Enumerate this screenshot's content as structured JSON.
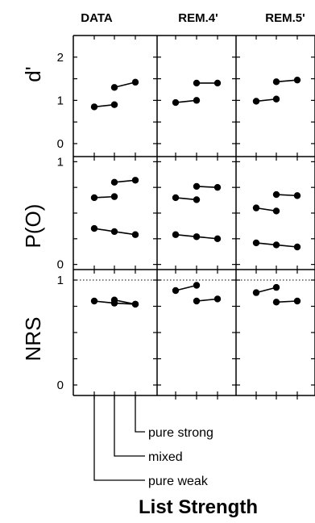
{
  "chart_data": {
    "type": "line",
    "xlabel": "List Strength",
    "columns": [
      "DATA",
      "REM.4'",
      "REM.5'"
    ],
    "conditions": [
      "pure weak",
      "mixed",
      "pure strong"
    ],
    "panels": [
      {
        "row_label": "d'",
        "ylim": [
          -0.3,
          2.5
        ],
        "yticks": [
          "0",
          "1",
          "2"
        ],
        "columns": [
          {
            "segments": [
              [
                [
                  0,
                  0.85
                ],
                [
                  1,
                  0.9
                ]
              ],
              [
                [
                  1,
                  1.3
                ],
                [
                  2,
                  1.42
                ]
              ]
            ]
          },
          {
            "segments": [
              [
                [
                  0,
                  0.95
                ],
                [
                  1,
                  1.0
                ]
              ],
              [
                [
                  1,
                  1.4
                ],
                [
                  2,
                  1.4
                ]
              ]
            ]
          },
          {
            "segments": [
              [
                [
                  0,
                  0.98
                ],
                [
                  1,
                  1.03
                ]
              ],
              [
                [
                  1,
                  1.43
                ],
                [
                  2,
                  1.47
                ]
              ]
            ]
          }
        ]
      },
      {
        "row_label": "P(O)",
        "ylim": [
          -0.05,
          1.05
        ],
        "yticks": [
          "0",
          "1"
        ],
        "columns": [
          {
            "segments": [
              [
                [
                  0,
                  0.65
                ],
                [
                  1,
                  0.66
                ]
              ],
              [
                [
                  1,
                  0.8
                ],
                [
                  2,
                  0.82
                ]
              ],
              [
                [
                  0,
                  0.35
                ],
                [
                  1,
                  0.32
                ],
                [
                  2,
                  0.29
                ]
              ]
            ]
          },
          {
            "segments": [
              [
                [
                  0,
                  0.65
                ],
                [
                  1,
                  0.63
                ]
              ],
              [
                [
                  1,
                  0.76
                ],
                [
                  2,
                  0.75
                ]
              ],
              [
                [
                  0,
                  0.29
                ],
                [
                  1,
                  0.27
                ],
                [
                  2,
                  0.25
                ]
              ]
            ]
          },
          {
            "segments": [
              [
                [
                  0,
                  0.55
                ],
                [
                  1,
                  0.52
                ]
              ],
              [
                [
                  1,
                  0.68
                ],
                [
                  2,
                  0.67
                ]
              ],
              [
                [
                  0,
                  0.21
                ],
                [
                  1,
                  0.19
                ],
                [
                  2,
                  0.17
                ]
              ]
            ]
          }
        ]
      },
      {
        "row_label": "NRS",
        "ylim": [
          -0.1,
          1.1
        ],
        "yticks": [
          "0",
          "1"
        ],
        "reference_line": 1,
        "columns": [
          {
            "segments": [
              [
                [
                  0,
                  0.8
                ],
                [
                  1,
                  0.78
                ],
                [
                  2,
                  0.77
                ]
              ],
              [
                [
                  1,
                  0.81
                ],
                [
                  2,
                  0.77
                ]
              ]
            ]
          },
          {
            "segments": [
              [
                [
                  0,
                  0.9
                ],
                [
                  1,
                  0.95
                ]
              ],
              [
                [
                  1,
                  0.8
                ],
                [
                  2,
                  0.82
                ]
              ]
            ]
          },
          {
            "segments": [
              [
                [
                  0,
                  0.88
                ],
                [
                  1,
                  0.93
                ]
              ],
              [
                [
                  1,
                  0.79
                ],
                [
                  2,
                  0.8
                ]
              ]
            ]
          }
        ]
      }
    ]
  }
}
